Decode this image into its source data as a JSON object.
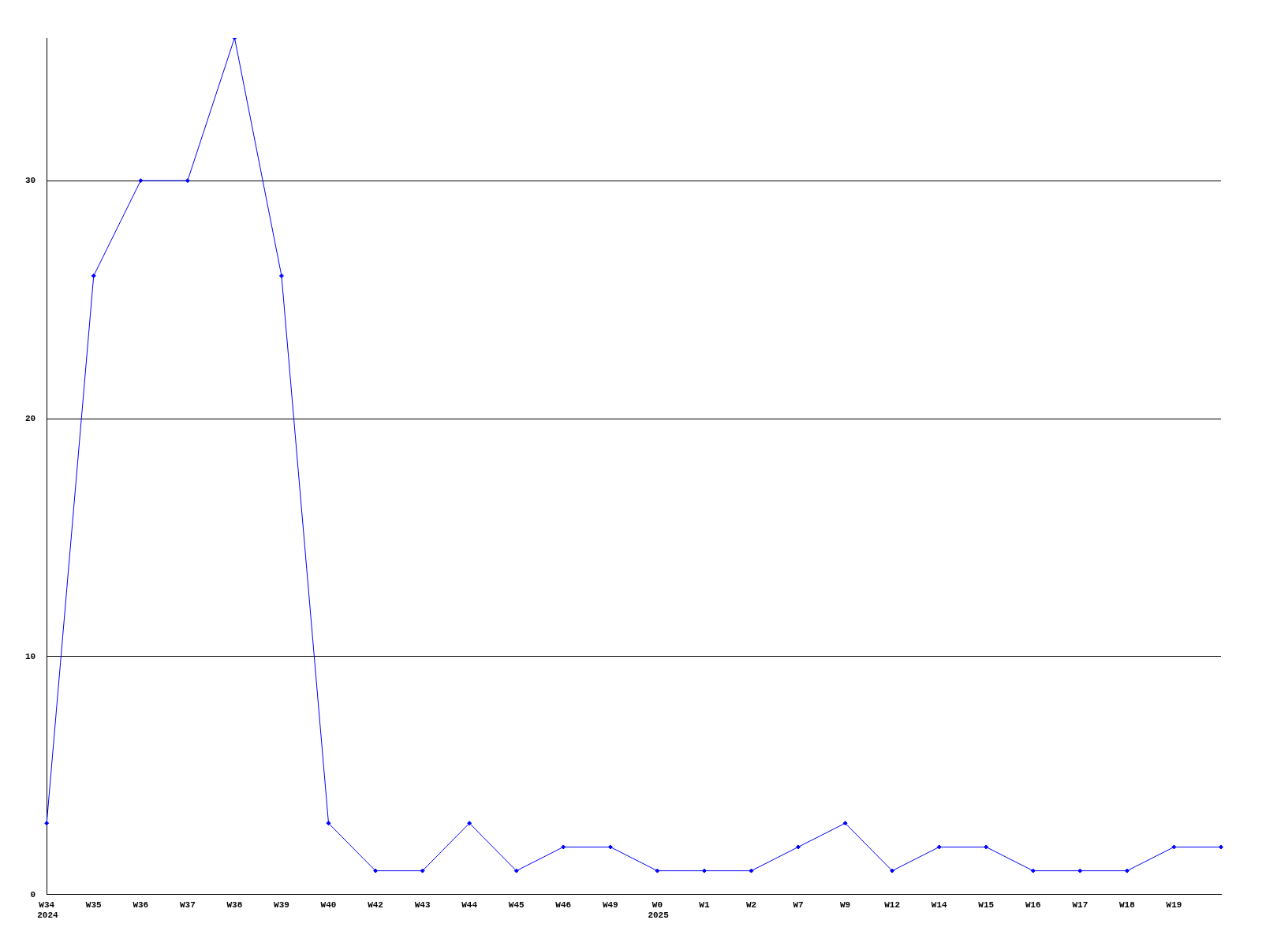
{
  "chart_data": {
    "type": "line",
    "categories": [
      "W34",
      "W35",
      "W36",
      "W37",
      "W38",
      "W39",
      "W40",
      "W42",
      "W43",
      "W44",
      "W45",
      "W46",
      "W49",
      "W0",
      "W1",
      "W2",
      "W7",
      "W9",
      "W12",
      "W14",
      "W15",
      "W16",
      "W17",
      "W18",
      "W19",
      null
    ],
    "series": [
      {
        "color": "#0000ff",
        "values": [
          3,
          26,
          30,
          30,
          36,
          26,
          3,
          1,
          1,
          3,
          1,
          2,
          2,
          1,
          1,
          1,
          2,
          3,
          1,
          2,
          2,
          1,
          1,
          1,
          2,
          2
        ]
      }
    ],
    "ylim": [
      0,
      36
    ],
    "yticks": [
      0,
      10,
      20,
      30
    ],
    "grid": "y",
    "legend": false,
    "marker": "diamond",
    "line_style": "solid",
    "annotations": [
      "2024",
      "2025"
    ]
  }
}
